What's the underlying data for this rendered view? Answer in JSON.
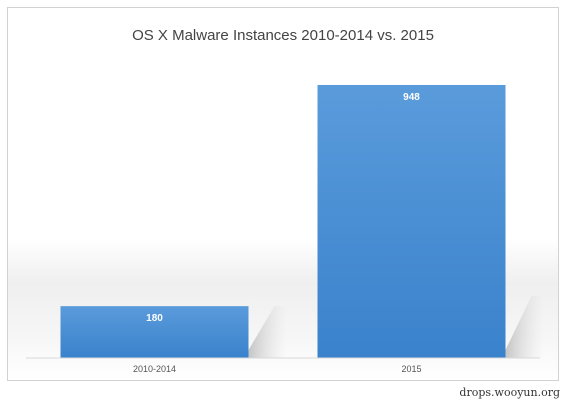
{
  "chart_data": {
    "type": "bar",
    "title": "OS X Malware Instances 2010-2014 vs. 2015",
    "categories": [
      "2010-2014",
      "2015"
    ],
    "values": [
      180,
      948
    ],
    "xlabel": "",
    "ylabel": "",
    "ylim": [
      0,
      1000
    ],
    "grid": false,
    "legend": "none",
    "bar_color": "#4a8fd4",
    "data_labels": true
  },
  "watermark": "drops.wooyun.org"
}
